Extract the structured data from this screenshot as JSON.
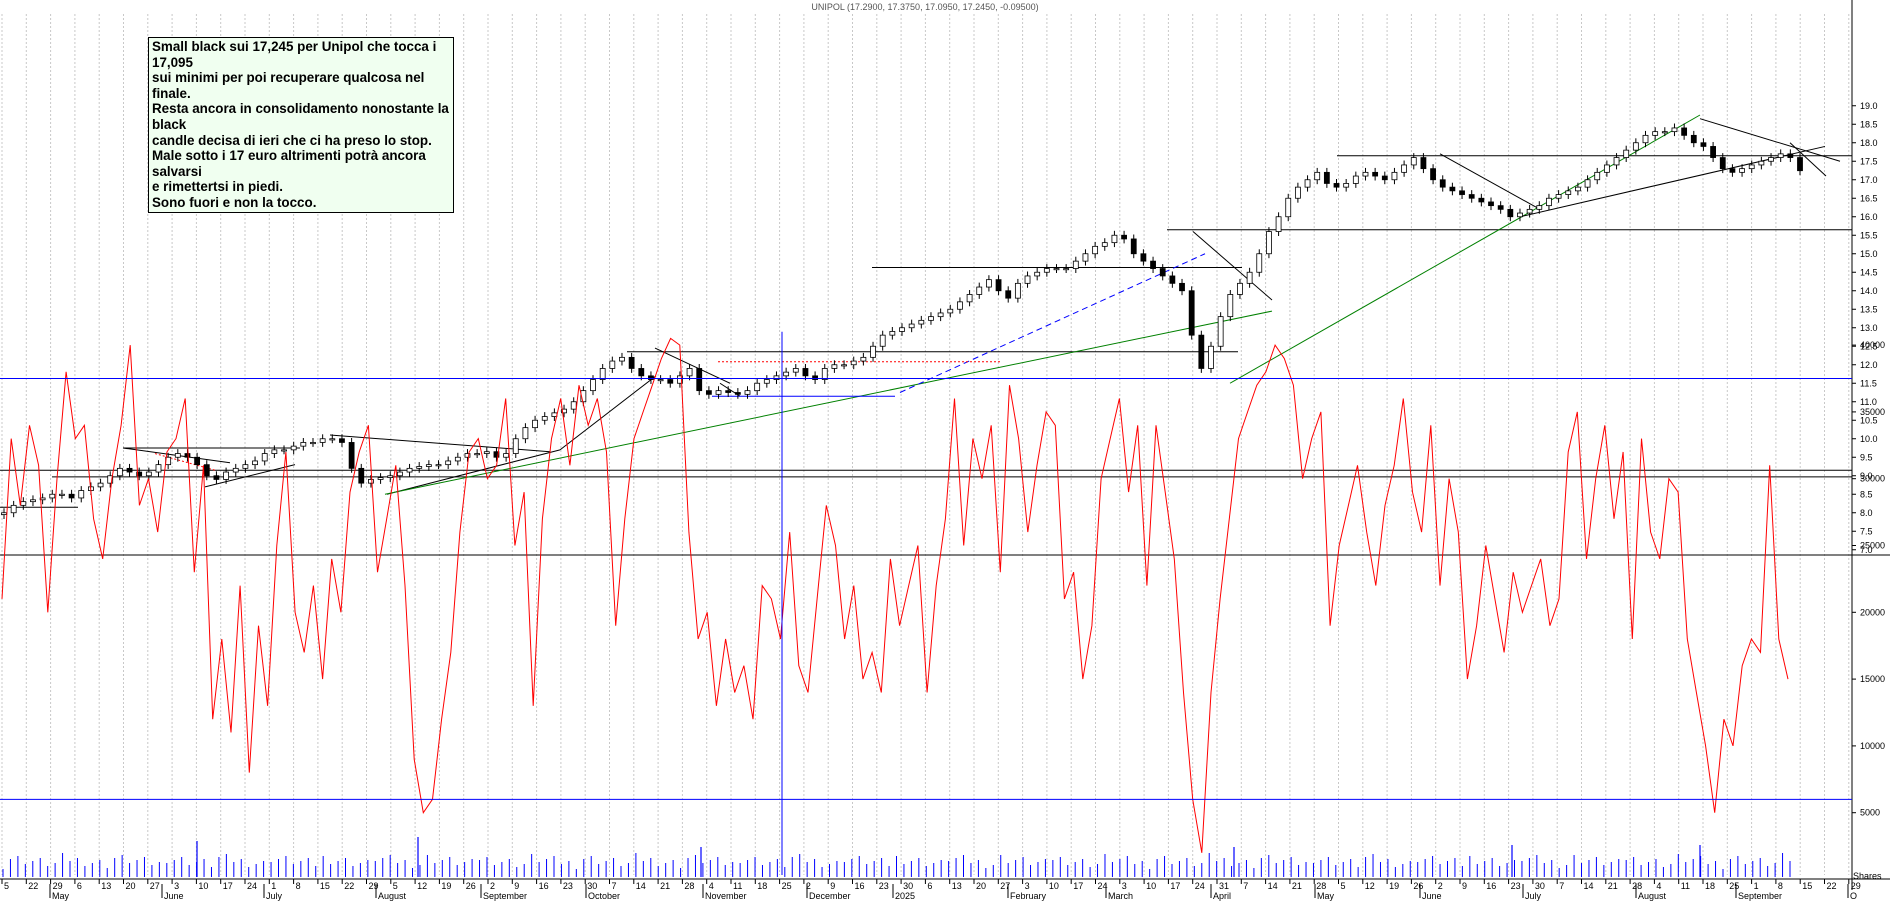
{
  "chart_data": [
    {
      "type": "candlestick",
      "title": "UNIPOL (17.2900, 17.3750, 17.0950, 17.2450, -0.09500)",
      "ylim": [
        6.8,
        19.3
      ],
      "y_ticks": [
        "7.0",
        "7.5",
        "8.0",
        "8.5",
        "9.0",
        "9.5",
        "10.0",
        "10.5",
        "11.0",
        "11.5",
        "12.0",
        "12.5",
        "13.0",
        "13.5",
        "14.0",
        "14.5",
        "15.0",
        "15.5",
        "16.0",
        "16.5",
        "17.0",
        "17.5",
        "18.0",
        "18.5",
        "19.0"
      ],
      "grid": true,
      "closes_approx": [
        8.0,
        8.2,
        8.3,
        8.35,
        8.4,
        8.5,
        8.5,
        8.4,
        8.6,
        8.7,
        8.8,
        9.0,
        9.2,
        9.1,
        9.0,
        9.1,
        9.3,
        9.5,
        9.6,
        9.5,
        9.3,
        9.0,
        8.9,
        9.1,
        9.2,
        9.3,
        9.4,
        9.6,
        9.7,
        9.7,
        9.8,
        9.9,
        9.9,
        10.0,
        10.0,
        9.9,
        9.2,
        8.8,
        8.9,
        8.95,
        9.0,
        9.1,
        9.2,
        9.25,
        9.3,
        9.3,
        9.4,
        9.5,
        9.6,
        9.6,
        9.65,
        9.5,
        9.6,
        10.0,
        10.3,
        10.5,
        10.6,
        10.7,
        10.8,
        11.0,
        11.3,
        11.6,
        11.9,
        12.1,
        12.2,
        11.9,
        11.7,
        11.6,
        11.6,
        11.5,
        11.7,
        11.9,
        11.3,
        11.2,
        11.3,
        11.25,
        11.2,
        11.3,
        11.5,
        11.6,
        11.7,
        11.8,
        11.9,
        11.7,
        11.6,
        11.9,
        12.0,
        12.0,
        12.1,
        12.2,
        12.5,
        12.8,
        12.9,
        13.0,
        13.1,
        13.2,
        13.3,
        13.4,
        13.5,
        13.7,
        13.9,
        14.1,
        14.3,
        14.0,
        13.8,
        14.2,
        14.4,
        14.5,
        14.6,
        14.6,
        14.6,
        14.8,
        15.0,
        15.2,
        15.3,
        15.5,
        15.4,
        15.0,
        14.8,
        14.6,
        14.4,
        14.2,
        14.0,
        12.8,
        11.9,
        12.5,
        13.3,
        13.9,
        14.2,
        14.5,
        15.0,
        15.6,
        16.0,
        16.5,
        16.8,
        17.0,
        17.2,
        16.9,
        16.8,
        16.9,
        17.1,
        17.2,
        17.1,
        17.0,
        17.2,
        17.4,
        17.6,
        17.3,
        17.0,
        16.8,
        16.7,
        16.6,
        16.5,
        16.4,
        16.3,
        16.2,
        16.0,
        16.1,
        16.2,
        16.3,
        16.5,
        16.6,
        16.7,
        16.8,
        17.0,
        17.2,
        17.4,
        17.6,
        17.8,
        18.0,
        18.2,
        18.3,
        18.3,
        18.4,
        18.2,
        18.0,
        17.9,
        17.6,
        17.3,
        17.2,
        17.3,
        17.4,
        17.5,
        17.6,
        17.7,
        17.6,
        17.245
      ]
    },
    {
      "type": "line",
      "ylim": [
        0,
        41000
      ],
      "y_ticks": [
        "5000",
        "10000",
        "15000",
        "20000",
        "25000",
        "30000",
        "35000",
        "40000"
      ],
      "values_approx": [
        21000,
        33000,
        28000,
        34000,
        31000,
        20000,
        30000,
        38000,
        33000,
        34000,
        27000,
        24000,
        30000,
        34000,
        40000,
        28000,
        30000,
        26000,
        32000,
        33000,
        36000,
        23000,
        31000,
        12000,
        18000,
        11000,
        22000,
        8000,
        19000,
        13000,
        25000,
        32000,
        20000,
        17000,
        22000,
        15000,
        24000,
        20000,
        29000,
        32000,
        34000,
        23000,
        27000,
        31000,
        22000,
        9000,
        5000,
        6000,
        12000,
        17000,
        26000,
        32000,
        33000,
        30000,
        31000,
        36000,
        25000,
        29000,
        13000,
        27000,
        33000,
        36000,
        31000,
        37000,
        34000,
        36000,
        32000,
        19000,
        27000,
        33000,
        35000,
        37000,
        39000,
        40500,
        40000,
        26000,
        18000,
        20000,
        13000,
        18000,
        14000,
        16000,
        12000,
        22000,
        21000,
        18000,
        26000,
        16000,
        14000,
        21000,
        28000,
        25000,
        18000,
        22000,
        15000,
        17000,
        14000,
        24000,
        19000,
        22000,
        25000,
        14000,
        22000,
        27000,
        36000,
        25000,
        33000,
        30000,
        34000,
        23000,
        37000,
        33000,
        26000,
        31000,
        35000,
        34000,
        21000,
        23000,
        15000,
        19000,
        30000,
        33000,
        36000,
        29000,
        34000,
        22000,
        34000,
        29000,
        24000,
        14000,
        6000,
        2000,
        14000,
        21000,
        27000,
        33000,
        35000,
        37000,
        38000,
        40000,
        39000,
        37000,
        30000,
        33000,
        35000,
        19000,
        25000,
        28000,
        31000,
        26000,
        22000,
        28000,
        31000,
        36000,
        29000,
        26000,
        34000,
        22000,
        30000,
        26000,
        15000,
        19000,
        25000,
        21000,
        17000,
        23000,
        20000,
        22000,
        24000,
        19000,
        21000,
        32000,
        35000,
        24000,
        30000,
        34000,
        27000,
        32000,
        18000,
        33000,
        26000,
        24000,
        30000,
        29000,
        18000,
        14000,
        10000,
        5000,
        12000,
        10000,
        16000,
        18000,
        17000,
        31000,
        18000,
        15000
      ],
      "hlines": [
        37500,
        6000
      ]
    }
  ],
  "x_axis": {
    "day_ticks": [
      "5",
      "22",
      "29",
      "6",
      "13",
      "20",
      "27",
      "3",
      "10",
      "17",
      "24",
      "1",
      "8",
      "15",
      "22",
      "29",
      "5",
      "12",
      "19",
      "26",
      "2",
      "9",
      "16",
      "23",
      "30",
      "7",
      "14",
      "21",
      "28",
      "4",
      "11",
      "18",
      "25",
      "2",
      "9",
      "16",
      "23",
      "30",
      "6",
      "13",
      "20",
      "27",
      "3",
      "10",
      "17",
      "24",
      "3",
      "10",
      "17",
      "24",
      "31",
      "7",
      "14",
      "21",
      "28",
      "5",
      "12",
      "19",
      "26",
      "2",
      "9",
      "16",
      "23",
      "30",
      "7",
      "14",
      "21",
      "28",
      "4",
      "11",
      "18",
      "25",
      "1",
      "8",
      "15",
      "22",
      "29"
    ],
    "months": [
      "May",
      "June",
      "July",
      "August",
      "September",
      "October",
      "November",
      "December",
      "2025",
      "February",
      "March",
      "April",
      "May",
      "June",
      "July",
      "August",
      "September",
      "O"
    ]
  },
  "annotation": "Small black sui 17,245 per Unipol che tocca i 17,095\nsui minimi per poi recuperare qualcosa nel finale.\nResta ancora in consolidamento nonostante la black\ncandle decisa di ieri che ci ha preso lo stop.\nMale sotto i 17 euro altrimenti potrà ancora salvarsi\ne rimettertsi in piedi.\nSono fuori e non la tocco.",
  "corner_label": "Shares",
  "colors": {
    "oscillator": "#ff0000",
    "volume": "#0000ff",
    "hline": "#0000ff",
    "support": "#008000",
    "trend": "#000000",
    "dash": "#0000ff",
    "dotted": "#ff0000",
    "grid": "#c8c8c8",
    "note_bg": "#f0fff0"
  }
}
